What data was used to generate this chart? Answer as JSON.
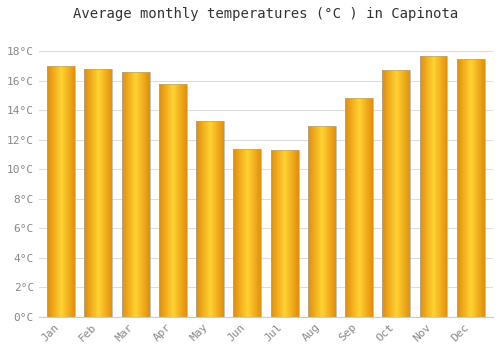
{
  "months": [
    "Jan",
    "Feb",
    "Mar",
    "Apr",
    "May",
    "Jun",
    "Jul",
    "Aug",
    "Sep",
    "Oct",
    "Nov",
    "Dec"
  ],
  "temperatures": [
    17.0,
    16.8,
    16.6,
    15.8,
    13.3,
    11.4,
    11.3,
    12.9,
    14.8,
    16.7,
    17.7,
    17.5
  ],
  "bar_color_edge": "#E8960A",
  "bar_color_center": "#FFD040",
  "bar_color_bottom": "#F0A010",
  "bar_outline_color": "#AAAAAA",
  "background_color": "#FFFFFF",
  "grid_color": "#DDDDDD",
  "title": "Average monthly temperatures (°C ) in Capinota",
  "ylabel_ticks": [
    0,
    2,
    4,
    6,
    8,
    10,
    12,
    14,
    16,
    18
  ],
  "ylim": [
    0,
    19.5
  ],
  "title_fontsize": 10,
  "tick_fontsize": 8,
  "tick_label_color": "#888888",
  "font_family": "monospace",
  "bar_width": 0.75
}
